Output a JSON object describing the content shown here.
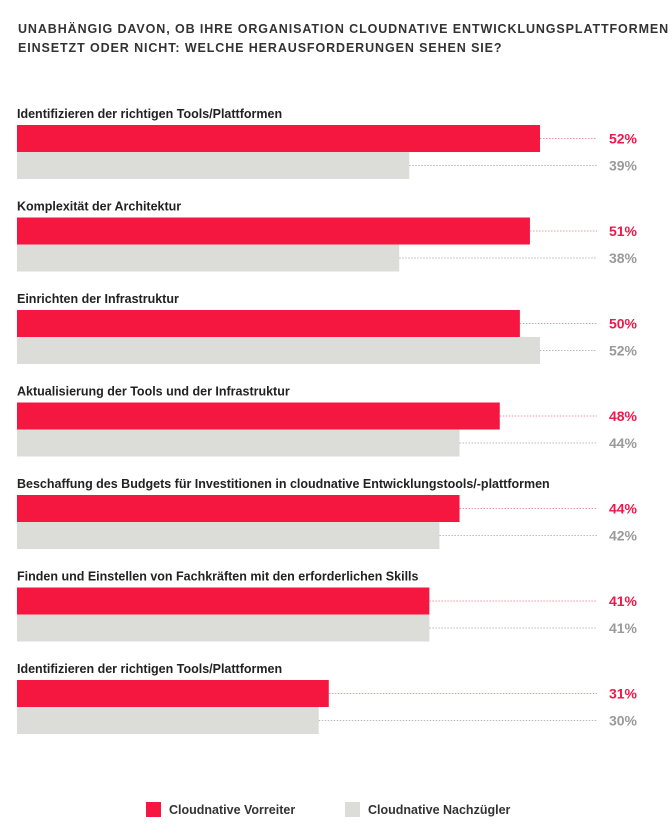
{
  "chart_data": {
    "type": "bar",
    "orientation": "horizontal",
    "title_lines": [
      "UNABHÄNGIG DAVON, OB IHRE ORGANISATION CLOUDNATIVE ENTWICKLUNGSPLATTFORMEN",
      "EINSETZT ODER NICHT: WELCHE HERAUSFORDERUNGEN SEHEN SIE?"
    ],
    "categories": [
      "Identifizieren der richtigen Tools/Plattformen",
      "Komplexität der Architektur",
      "Einrichten der Infrastruktur",
      "Aktualisierung der Tools und der Infrastruktur",
      "Beschaffung des Budgets für Investitionen in cloudnative Entwicklungstools/-plattformen",
      "Finden und Einstellen von Fachkräften mit den erforderlichen Skills",
      "Identifizieren der richtigen Tools/Plattformen"
    ],
    "series": [
      {
        "name": "Cloudnative Vorreiter",
        "color": "#f5173f",
        "values": [
          52,
          51,
          50,
          48,
          44,
          41,
          31
        ]
      },
      {
        "name": "Cloudnative Nachzügler",
        "color": "#dcddd8",
        "values": [
          39,
          38,
          52,
          44,
          42,
          41,
          30
        ]
      }
    ],
    "value_suffix": "%",
    "xlim": [
      0,
      52
    ],
    "legend_position": "bottom-center",
    "grid": false
  },
  "colors": {
    "label_primary": "#f0174a",
    "label_secondary": "#9a9a9a",
    "leader_primary": "#f3949f",
    "leader_secondary": "#b8b8b8"
  }
}
